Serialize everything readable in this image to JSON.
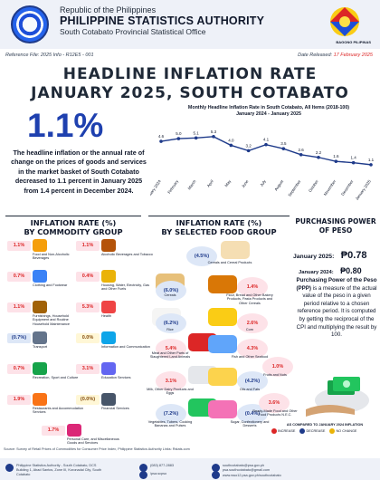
{
  "header": {
    "line1": "Republic of the Philippines",
    "line2": "PHILIPPINE STATISTICS AUTHORITY",
    "line3": "South Cotabato Provincial Statistical Office",
    "logo_right_text": "BAGONG PILIPINAS"
  },
  "reference": {
    "ref_label": "Reference File: 2025  Info - R12E5 - 001",
    "date_label": "Date Released:",
    "date_value": "17 February 2025"
  },
  "title": {
    "line1": "HEADLINE INFLATION RATE",
    "line2": "JANUARY 2025, SOUTH COTABATO"
  },
  "headline": {
    "rate": "1.1%",
    "summary": "The headline inflation or the annual rate of change on the prices of goods and services in the market basket of South Cotabato decreased to 1.1 percent in January 2025 from 1.4 percent in December 2024."
  },
  "chart_data": {
    "type": "line",
    "title": "Monthly Headline Inflation Rate in South Cotabato, All Items (2018-100)",
    "subtitle": "January 2024 - January 2025",
    "categories": [
      "January 2024",
      "February",
      "March",
      "April",
      "May",
      "June",
      "July",
      "August",
      "September",
      "October",
      "November",
      "December",
      "January 2025"
    ],
    "values": [
      4.6,
      5.0,
      5.1,
      5.3,
      4.0,
      3.2,
      4.1,
      3.5,
      2.6,
      2.2,
      1.6,
      1.4,
      1.1
    ],
    "value_labels": [
      "4.6",
      "5.0",
      "5.1",
      "5.3",
      "4.0",
      "3.2",
      "4.1",
      "3.5",
      "2.6",
      "2.2",
      "1.6",
      "1.4",
      "1.1"
    ],
    "ylim": [
      0,
      6.5
    ],
    "line_color": "#1e3a8a",
    "grid": false
  },
  "commodity": {
    "title_line1": "INFLATION RATE (%)",
    "title_line2": "BY COMMODITY GROUP",
    "items": [
      {
        "value": "1.1%",
        "label": "Food and Non-Alcoholic Beverages",
        "status": "inc"
      },
      {
        "value": "1.1%",
        "label": "Alcoholic Beverages and Tobacco",
        "status": "inc"
      },
      {
        "value": "0.7%",
        "label": "Clothing and Footwear",
        "status": "inc"
      },
      {
        "value": "0.4%",
        "label": "Housing, Water, Electricity, Gas and Other Fuels",
        "status": "inc"
      },
      {
        "value": "1.1%",
        "label": "Furnishings, Household Equipment and Routine Household Maintenance",
        "status": "inc"
      },
      {
        "value": "5.3%",
        "label": "Health",
        "status": "inc"
      },
      {
        "value": "(0.7%)",
        "label": "Transport",
        "status": "dec"
      },
      {
        "value": "0.0%",
        "label": "Information and Communication",
        "status": "nochg"
      },
      {
        "value": "0.7%",
        "label": "Recreation, Sport and Culture",
        "status": "inc"
      },
      {
        "value": "3.1%",
        "label": "Education Services",
        "status": "inc"
      },
      {
        "value": "1.9%",
        "label": "Restaurants and Accommodation Services",
        "status": "inc"
      },
      {
        "value": "(0.0%)",
        "label": "Financial Services",
        "status": "nochg"
      },
      {
        "value": "1.7%",
        "label": "Personal Care, and Miscellaneous Goods and Services",
        "status": "inc"
      }
    ]
  },
  "food": {
    "title_line1": "INFLATION RATE (%)",
    "title_line2": "BY SELECTED FOOD GROUP",
    "items": [
      {
        "value": "(4.5%)",
        "label": "Cereals and Cereal Products",
        "status": "dec"
      },
      {
        "value": "(6.0%)",
        "label": "Cereals",
        "status": "dec"
      },
      {
        "value": "1.4%",
        "label": "Flour, Bread and Other Bakery Products, Pasta Products and Other Cereals",
        "status": "inc"
      },
      {
        "value": "(6.2%)",
        "label": "Rice",
        "status": "dec"
      },
      {
        "value": "2.6%",
        "label": "Corn",
        "status": "inc"
      },
      {
        "value": "5.4%",
        "label": "Meat and Other Parts of Slaughtered Land Animals",
        "status": "inc"
      },
      {
        "value": "4.3%",
        "label": "Fish and Other Seafood",
        "status": "inc"
      },
      {
        "value": "3.1%",
        "label": "Milk, Other Dairy Products and Eggs",
        "status": "inc"
      },
      {
        "value": "(4.2%)",
        "label": "Oils and Fats",
        "status": "dec"
      },
      {
        "value": "1.0%",
        "label": "Fruits and Nuts",
        "status": "inc"
      },
      {
        "value": "(7.2%)",
        "label": "Vegetables, Tubers, Cooking Bananas and Pulses",
        "status": "dec"
      },
      {
        "value": "(0.4%)",
        "label": "Sugar, Confectionery and Desserts",
        "status": "dec"
      },
      {
        "value": "3.6%",
        "label": "Ready-Made Food and Other Food Products N.E.C.",
        "status": "inc"
      }
    ]
  },
  "purchasing": {
    "title_line1": "PURCHASING POWER",
    "title_line2": "OF PESO",
    "jan2025_label": "January 2025:",
    "jan2025_value": "₱0.78",
    "jan2024_label": "January 2024:",
    "jan2024_value": "₱0.80",
    "def_bold": "Purchasing Power of the Peso (PPP)",
    "def_rest": " is a measure of the actual value of the peso in a given period relative to a chosen reference period. It is computed by getting the reciprocal of the CPI and multiplying the result by 100."
  },
  "legend": {
    "title": "AS COMPARED TO JANUARY 2024 INFLATION",
    "increase": "INCREASE",
    "decrease": "DECREASE",
    "no_change": "NO CHANGE",
    "colors": {
      "increase": "#dc2626",
      "decrease": "#1e3a8a",
      "no_change": "#eab308"
    }
  },
  "source": "Source: Survey of Retail Prices of Commodities for Consumer Price Index, Philippine Statistics Authority\nLinks: Rstats.com",
  "footer": {
    "address": "Philippine Statistics Authority - South Cotabato, DCS Building 1, Abad Santos, Zone III, Koronadal City, South Cotabato",
    "phone": "(083) 877-2883",
    "fb": "/psa.scpso",
    "email1": "southcotabato@psa.gov.ph",
    "email2": "psa.southcotabato@gmail.com",
    "web": "www.rsso12.psa.gov.ph/southcotabato"
  }
}
